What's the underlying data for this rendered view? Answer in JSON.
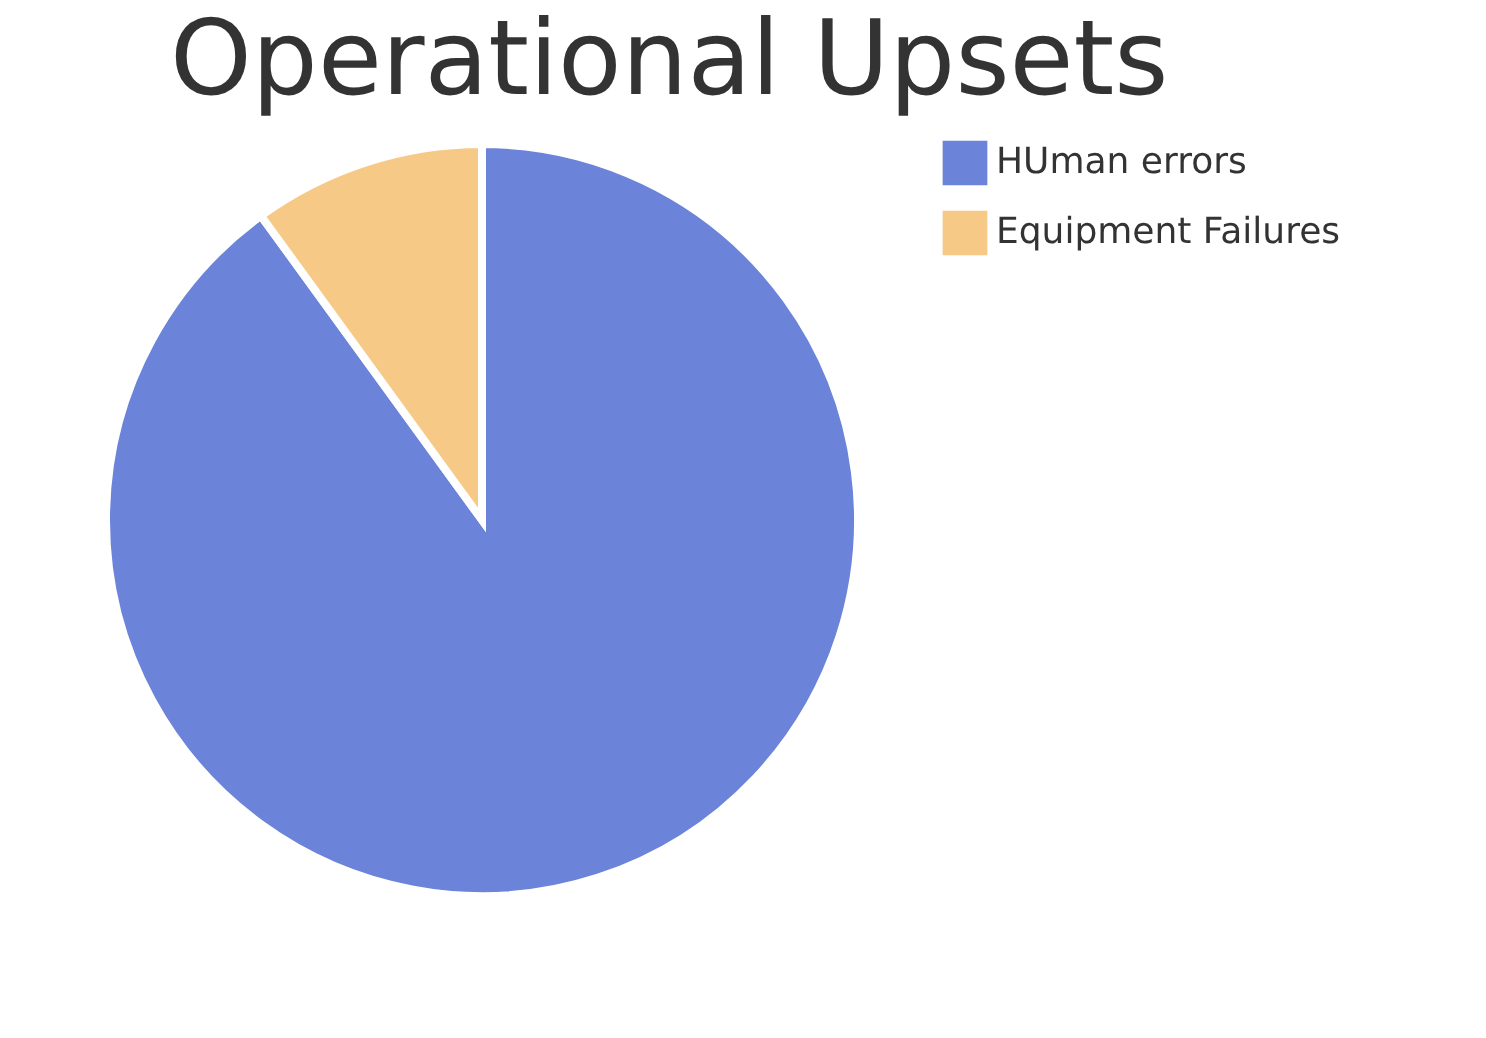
{
  "chart_data": {
    "type": "pie",
    "title": "Operational Upsets",
    "categories": [
      "HUman errors",
      "Equipment Failures"
    ],
    "values": [
      90,
      10
    ],
    "colors": [
      "#6b83d9",
      "#f6c986"
    ],
    "legend": "right"
  }
}
